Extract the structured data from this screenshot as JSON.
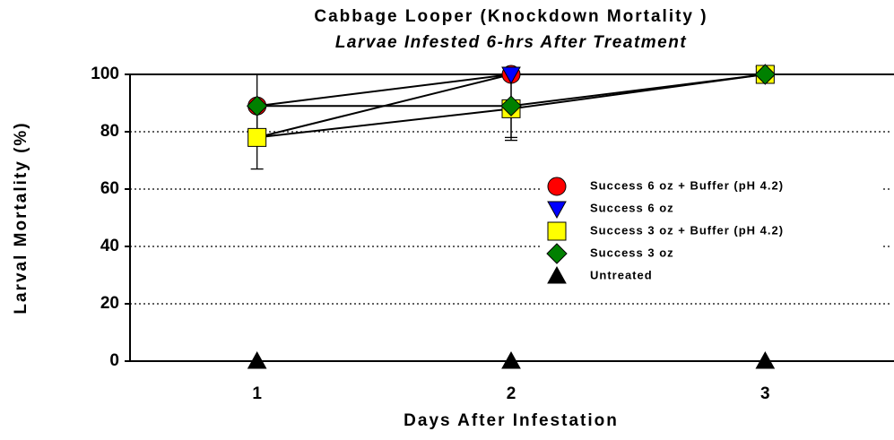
{
  "chart_data": {
    "type": "line",
    "title": "Cabbage Looper  (Knockdown Mortality )",
    "subtitle": "Larvae Infested 6-hrs After Treatment",
    "x_label": "Days After Infestation",
    "y_label": "Larval Mortality (%)",
    "x": [
      1,
      2,
      3
    ],
    "xlim": [
      0.5,
      3.5
    ],
    "xticks": [
      1,
      2,
      3
    ],
    "ylim": [
      0,
      100
    ],
    "yticks": [
      0,
      20,
      40,
      60,
      80,
      100
    ],
    "grid": true,
    "series": [
      {
        "name": "Success 6 oz + Buffer (pH 4.2)",
        "color": "#ff0000",
        "marker": "circle",
        "values": [
          89,
          100,
          100
        ]
      },
      {
        "name": "Success 6 oz",
        "color": "#0000ff",
        "marker": "triangle-down",
        "values": [
          78,
          100,
          100
        ]
      },
      {
        "name": "Success 3 oz + Buffer (pH 4.2)",
        "color": "#ffff00",
        "marker": "square",
        "values": [
          78,
          88,
          100
        ],
        "errors": [
          11,
          11,
          0
        ]
      },
      {
        "name": "Success  3 oz",
        "color": "#008000",
        "marker": "diamond",
        "values": [
          89,
          89,
          100
        ],
        "errors": [
          11,
          11,
          0
        ]
      },
      {
        "name": "Untreated",
        "color": "#000000",
        "marker": "triangle-up",
        "values": [
          0,
          0,
          0
        ]
      }
    ]
  }
}
